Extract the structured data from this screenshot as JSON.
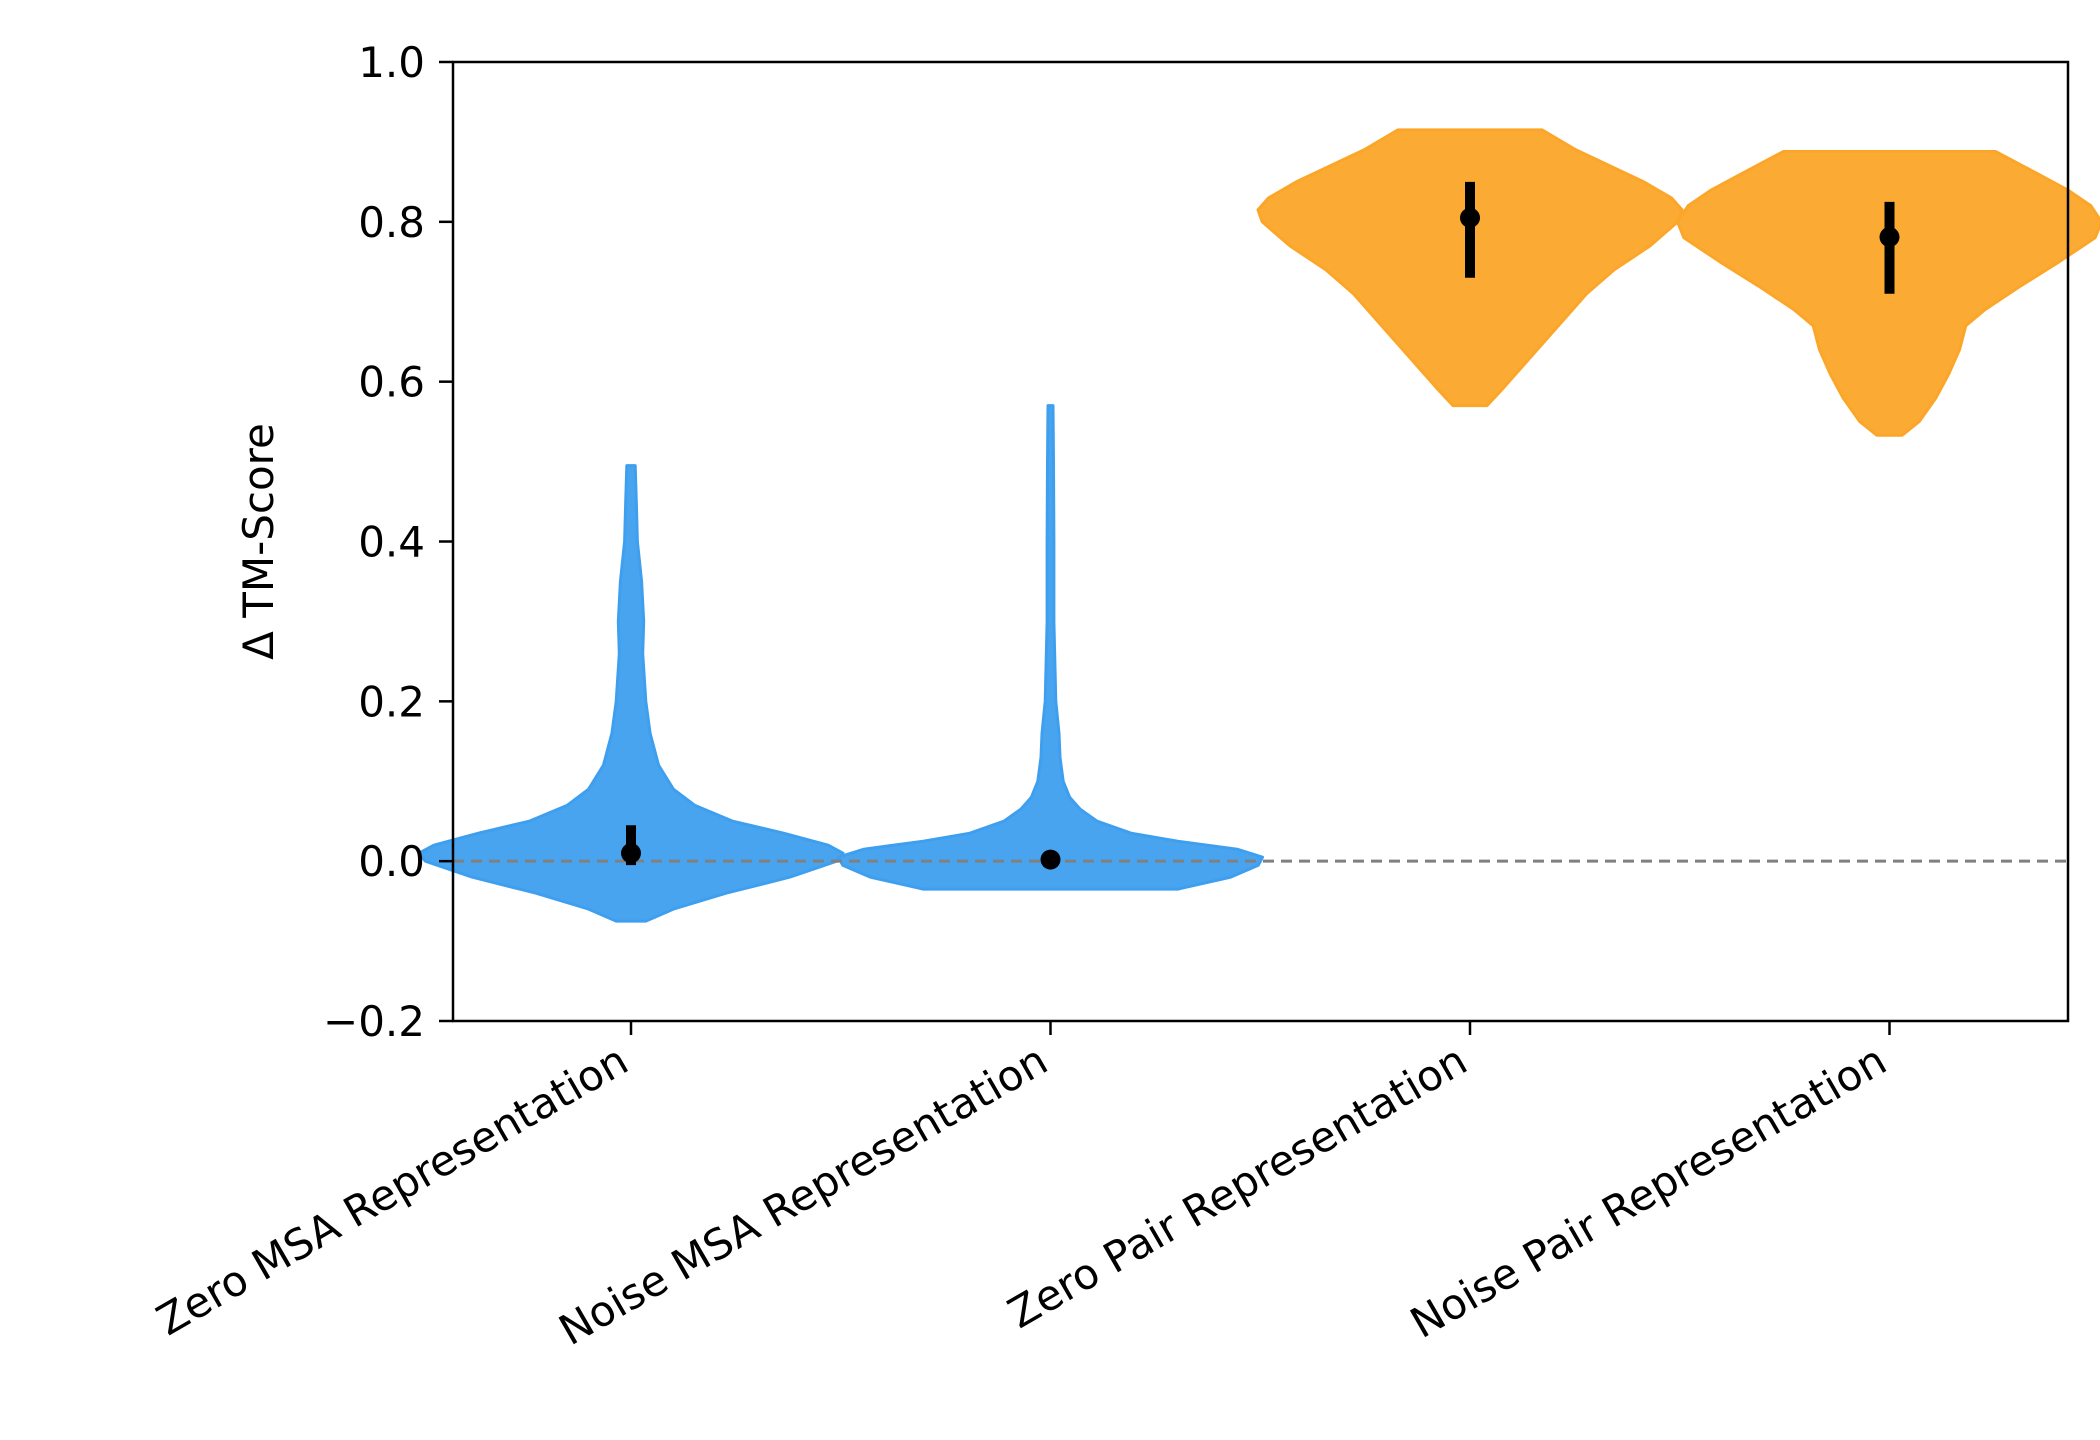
{
  "chart_data": {
    "type": "violin",
    "title": "",
    "xlabel": "",
    "ylabel": "Δ TM-Score",
    "ylim": [
      -0.2,
      1.0
    ],
    "yticks": [
      -0.2,
      0.0,
      0.2,
      0.4,
      0.6,
      0.8,
      1.0
    ],
    "ytick_labels": [
      "−0.2",
      "0.0",
      "0.2",
      "0.4",
      "0.6",
      "0.8",
      "1.0"
    ],
    "categories": [
      "Zero MSA Representation",
      "Noise MSA Representation",
      "Zero Pair Representation",
      "Noise Pair Representation"
    ],
    "reference_line": {
      "y": 0.0,
      "style": "dashed",
      "color": "#808080"
    },
    "grid": false,
    "legend": "none",
    "series": [
      {
        "category": "Zero MSA Representation",
        "color": "#3f9fef",
        "min": -0.075,
        "max": 0.495,
        "median": 0.01,
        "q1": -0.005,
        "q3": 0.045,
        "profile": [
          [
            -0.075,
            0.07
          ],
          [
            -0.06,
            0.2
          ],
          [
            -0.04,
            0.45
          ],
          [
            -0.02,
            0.75
          ],
          [
            0.0,
            0.97
          ],
          [
            0.01,
            1.0
          ],
          [
            0.02,
            0.93
          ],
          [
            0.035,
            0.72
          ],
          [
            0.05,
            0.48
          ],
          [
            0.07,
            0.3
          ],
          [
            0.09,
            0.2
          ],
          [
            0.12,
            0.13
          ],
          [
            0.16,
            0.09
          ],
          [
            0.2,
            0.07
          ],
          [
            0.26,
            0.055
          ],
          [
            0.3,
            0.06
          ],
          [
            0.35,
            0.05
          ],
          [
            0.4,
            0.03
          ],
          [
            0.45,
            0.025
          ],
          [
            0.495,
            0.02
          ]
        ]
      },
      {
        "category": "Noise MSA Representation",
        "color": "#3f9fef",
        "min": -0.035,
        "max": 0.57,
        "median": 0.002,
        "q1": -0.003,
        "q3": 0.006,
        "profile": [
          [
            -0.035,
            0.6
          ],
          [
            -0.02,
            0.85
          ],
          [
            -0.005,
            0.98
          ],
          [
            0.005,
            1.0
          ],
          [
            0.015,
            0.88
          ],
          [
            0.025,
            0.6
          ],
          [
            0.035,
            0.38
          ],
          [
            0.05,
            0.22
          ],
          [
            0.065,
            0.14
          ],
          [
            0.08,
            0.09
          ],
          [
            0.1,
            0.06
          ],
          [
            0.13,
            0.045
          ],
          [
            0.16,
            0.04
          ],
          [
            0.2,
            0.025
          ],
          [
            0.3,
            0.016
          ],
          [
            0.4,
            0.016
          ],
          [
            0.5,
            0.014
          ],
          [
            0.57,
            0.012
          ]
        ]
      },
      {
        "category": "Zero Pair Representation",
        "color": "#fba629",
        "min": 0.57,
        "max": 0.915,
        "median": 0.805,
        "q1": 0.73,
        "q3": 0.85,
        "profile": [
          [
            0.57,
            0.08
          ],
          [
            0.59,
            0.15
          ],
          [
            0.62,
            0.25
          ],
          [
            0.65,
            0.35
          ],
          [
            0.68,
            0.45
          ],
          [
            0.71,
            0.55
          ],
          [
            0.74,
            0.68
          ],
          [
            0.77,
            0.85
          ],
          [
            0.8,
            0.98
          ],
          [
            0.815,
            1.0
          ],
          [
            0.83,
            0.95
          ],
          [
            0.85,
            0.82
          ],
          [
            0.87,
            0.66
          ],
          [
            0.89,
            0.5
          ],
          [
            0.915,
            0.34
          ]
        ]
      },
      {
        "category": "Noise Pair Representation",
        "color": "#fba629",
        "min": 0.533,
        "max": 0.888,
        "median": 0.781,
        "q1": 0.71,
        "q3": 0.825,
        "profile": [
          [
            0.533,
            0.06
          ],
          [
            0.55,
            0.14
          ],
          [
            0.58,
            0.22
          ],
          [
            0.61,
            0.28
          ],
          [
            0.64,
            0.33
          ],
          [
            0.67,
            0.36
          ],
          [
            0.69,
            0.45
          ],
          [
            0.72,
            0.62
          ],
          [
            0.75,
            0.8
          ],
          [
            0.78,
            0.97
          ],
          [
            0.8,
            1.0
          ],
          [
            0.82,
            0.95
          ],
          [
            0.84,
            0.84
          ],
          [
            0.86,
            0.7
          ],
          [
            0.888,
            0.5
          ]
        ]
      }
    ]
  }
}
